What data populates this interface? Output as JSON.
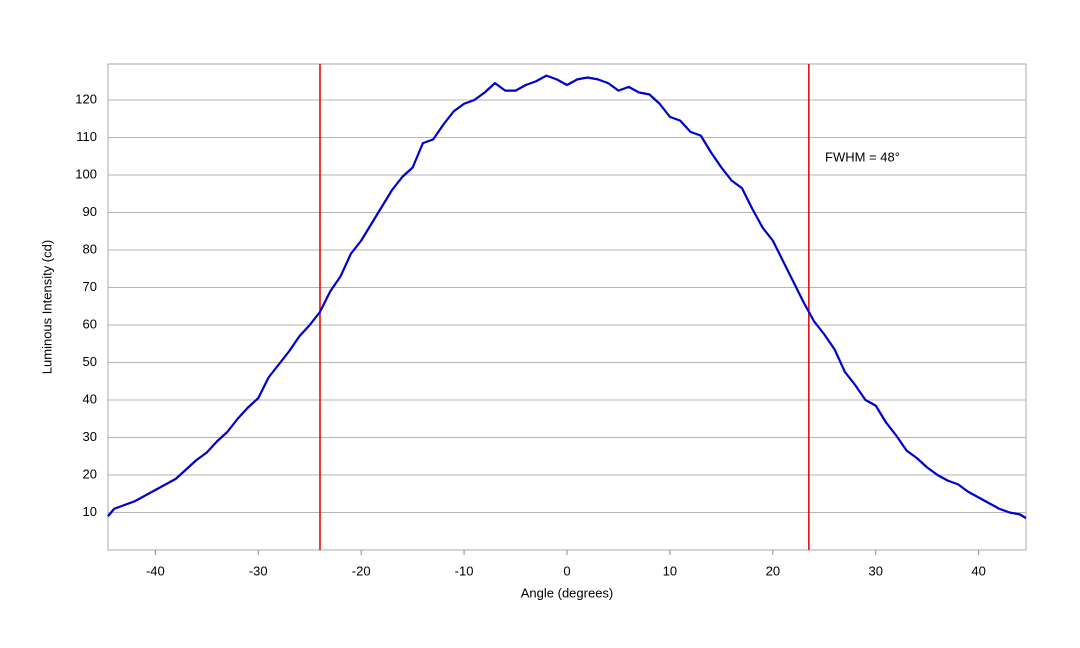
{
  "chart_data": {
    "type": "line",
    "xlabel": "Angle (degrees)",
    "ylabel": "Luminous Intensity (cd)",
    "annotation": "FWHM = 48°",
    "x": [
      -44.6,
      -44,
      -43,
      -42,
      -41,
      -40,
      -39,
      -38,
      -37,
      -36,
      -35,
      -34,
      -33,
      -32,
      -31,
      -30,
      -29,
      -28,
      -27,
      -26,
      -25,
      -24,
      -23,
      -22,
      -21,
      -20,
      -19,
      -18,
      -17,
      -16,
      -15,
      -14,
      -13,
      -12,
      -11,
      -10,
      -9,
      -8,
      -7,
      -6,
      -5,
      -4,
      -3,
      -2,
      -1,
      0,
      1,
      2,
      3,
      4,
      5,
      6,
      7,
      8,
      9,
      10,
      11,
      12,
      13,
      14,
      15,
      16,
      17,
      18,
      19,
      20,
      21,
      22,
      23,
      24,
      25,
      26,
      27,
      28,
      29,
      30,
      31,
      32,
      33,
      34,
      35,
      36,
      37,
      38,
      39,
      40,
      41,
      42,
      43,
      44,
      44.6
    ],
    "series": [
      {
        "color": "#0000cc",
        "values": [
          9,
          11,
          12,
          13,
          14.5,
          16,
          17.5,
          19,
          21.5,
          24,
          26,
          29,
          31.5,
          35,
          38,
          40.5,
          46,
          49.5,
          53,
          57,
          60,
          63.5,
          69,
          73,
          79,
          82.5,
          87,
          91.5,
          96,
          99.5,
          102,
          108.5,
          109.5,
          113.5,
          117,
          119,
          120,
          122,
          124.5,
          122.5,
          122.5,
          124,
          125,
          126.5,
          125.5,
          124,
          125.5,
          126,
          125.5,
          124.5,
          122.5,
          123.5,
          122,
          121.5,
          119,
          115.5,
          114.5,
          111.5,
          110.5,
          106,
          102,
          98.5,
          96.5,
          91,
          86,
          82.5,
          77,
          71.5,
          66,
          61,
          57.5,
          53.5,
          47.5,
          44,
          40,
          38.5,
          34,
          30.5,
          26.5,
          24.5,
          22,
          20,
          18.5,
          17.5,
          15.5,
          14,
          12.5,
          11,
          10,
          9.5,
          8.5
        ]
      }
    ],
    "vlines": [
      -24,
      23.5
    ],
    "vline_color": "#e00000",
    "xlim": [
      -44.6,
      44.6
    ],
    "ylim": [
      0,
      129.6
    ],
    "xticks": [
      -40,
      -30,
      -20,
      -10,
      0,
      10,
      20,
      30,
      40
    ],
    "yticks": [
      10,
      20,
      30,
      40,
      50,
      60,
      70,
      80,
      90,
      100,
      110,
      120
    ],
    "grid": true
  }
}
